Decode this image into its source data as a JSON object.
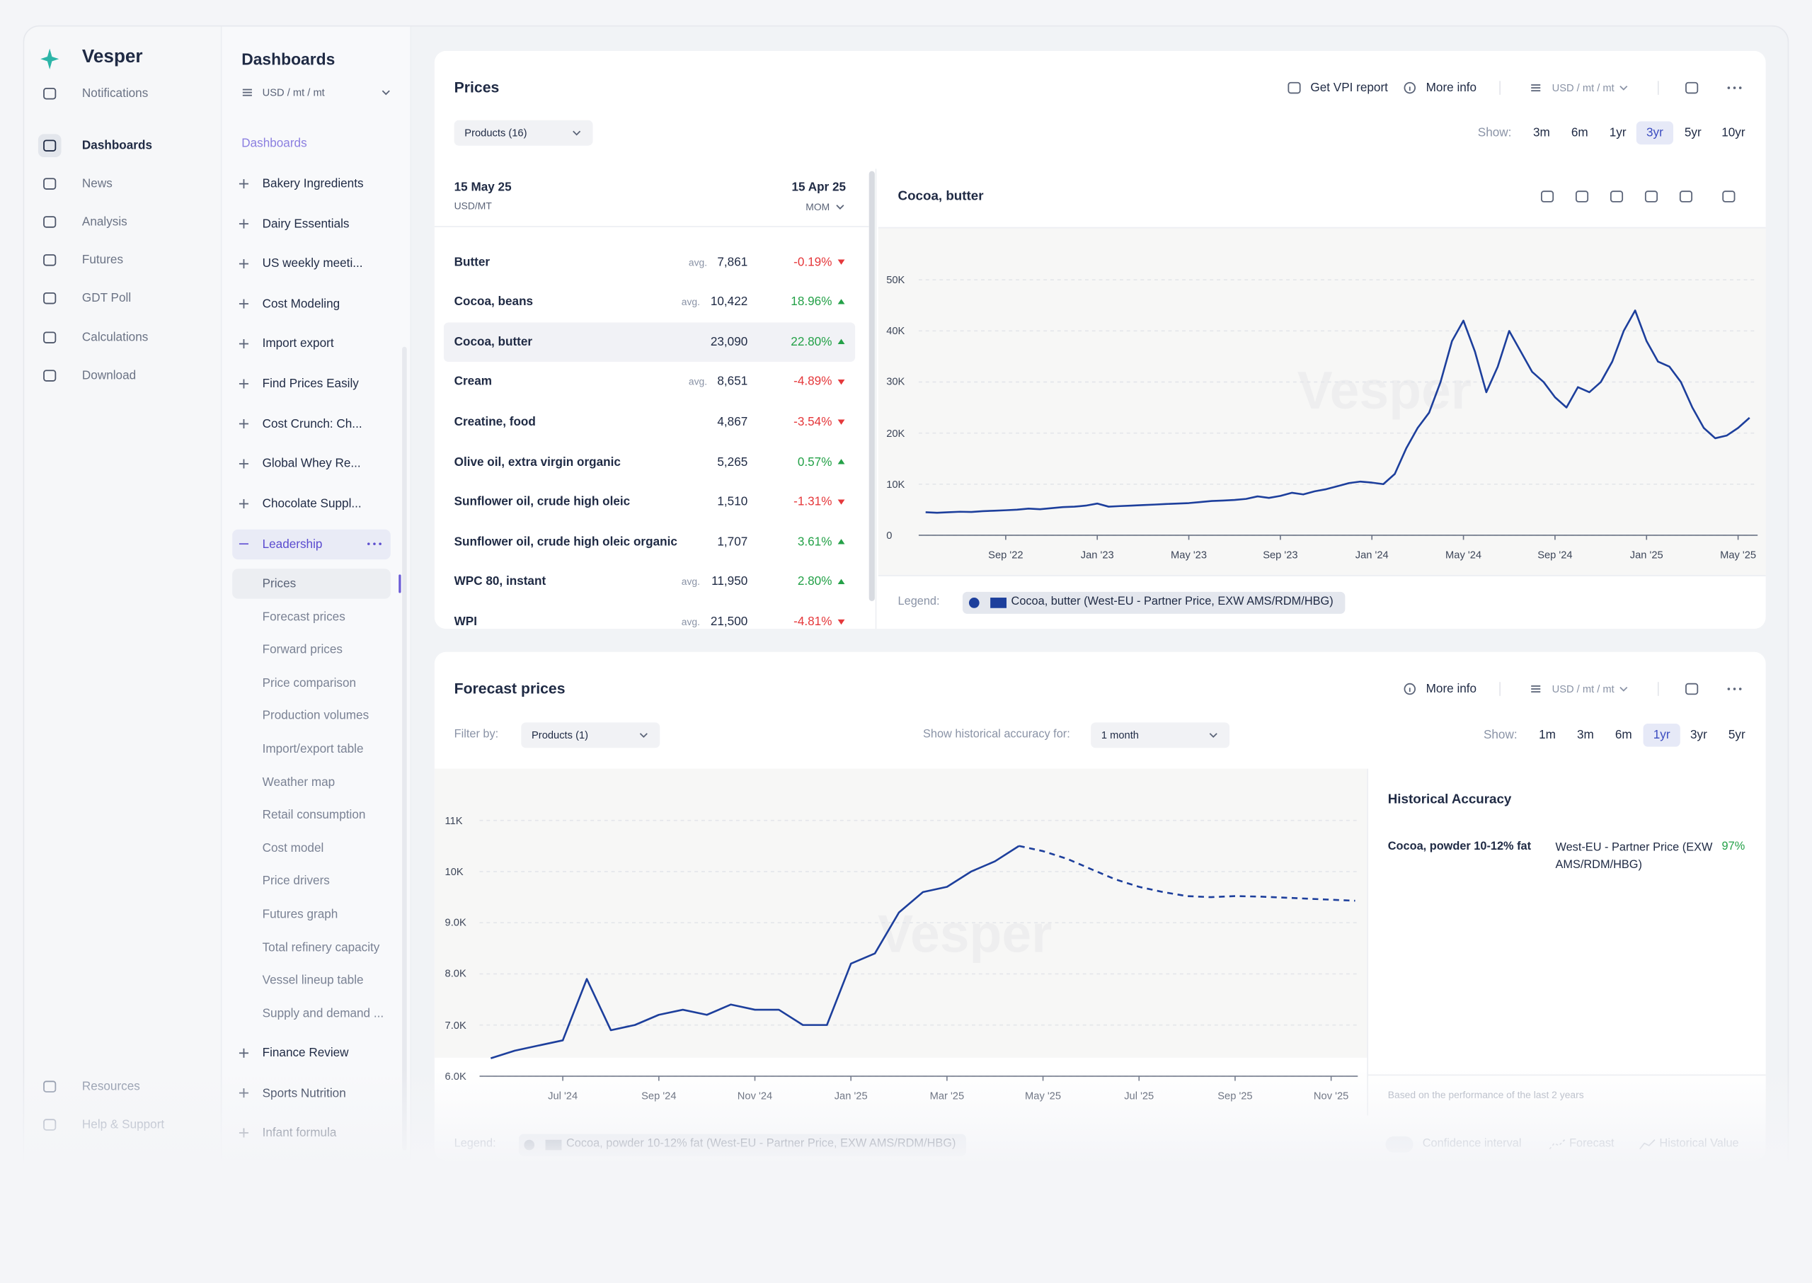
{
  "sidebar": {
    "brand": "Vesper",
    "nav": [
      "Notifications",
      "Dashboards",
      "News",
      "Analysis",
      "Futures",
      "GDT Poll",
      "Calculations",
      "Download"
    ],
    "active": "Dashboards",
    "footer": [
      "Resources",
      "Help & Support"
    ]
  },
  "dashboards": {
    "title": "Dashboards",
    "unit": "USD / mt / mt",
    "section": "Dashboards",
    "groups": [
      "Bakery Ingredients",
      "Dairy Essentials",
      "US weekly meeti...",
      "Cost Modeling",
      "Import export",
      "Find Prices Easily",
      "Cost Crunch: Ch...",
      "Global Whey Re...",
      "Chocolate Suppl..."
    ],
    "open": {
      "name": "Leadership",
      "items": [
        "Prices",
        "Forecast prices",
        "Forward prices",
        "Price comparison",
        "Production volumes",
        "Import/export table",
        "Weather map",
        "Retail consumption",
        "Cost model",
        "Price drivers",
        "Futures graph",
        "Total refinery capacity",
        "Vessel lineup table",
        "Supply and demand ..."
      ],
      "active": "Prices"
    },
    "groups_after": [
      "Finance Review",
      "Sports Nutrition",
      "Infant formula"
    ]
  },
  "prices": {
    "title": "Prices",
    "actions": [
      "Get VPI report",
      "More info"
    ],
    "unit": "USD / mt / mt",
    "filter": "Products (16)",
    "show_label": "Show:",
    "ranges": [
      "3m",
      "6m",
      "1yr",
      "3yr",
      "5yr",
      "10yr"
    ],
    "active_range": "3yr",
    "table": {
      "date": "15 May 25",
      "unit": "USD/MT",
      "compare_date": "15 Apr 25",
      "compare_mode": "MOM",
      "avg_label": "avg.",
      "selected": "Cocoa, butter",
      "rows": [
        {
          "name": "Butter",
          "avg": true,
          "price": "7,861",
          "change": "-0.19%",
          "trend": "down"
        },
        {
          "name": "Cocoa, beans",
          "avg": true,
          "price": "10,422",
          "change": "18.96%",
          "trend": "up"
        },
        {
          "name": "Cocoa, butter",
          "avg": false,
          "price": "23,090",
          "change": "22.80%",
          "trend": "up"
        },
        {
          "name": "Cream",
          "avg": true,
          "price": "8,651",
          "change": "-4.89%",
          "trend": "down"
        },
        {
          "name": "Creatine, food",
          "avg": false,
          "price": "4,867",
          "change": "-3.54%",
          "trend": "down"
        },
        {
          "name": "Olive oil, extra virgin organic",
          "avg": false,
          "price": "5,265",
          "change": "0.57%",
          "trend": "up"
        },
        {
          "name": "Sunflower oil, crude high oleic",
          "avg": false,
          "price": "1,510",
          "change": "-1.31%",
          "trend": "down"
        },
        {
          "name": "Sunflower oil, crude high oleic organic",
          "avg": false,
          "price": "1,707",
          "change": "3.61%",
          "trend": "up"
        },
        {
          "name": "WPC 80, instant",
          "avg": true,
          "price": "11,950",
          "change": "2.80%",
          "trend": "up"
        },
        {
          "name": "WPI",
          "avg": true,
          "price": "21,500",
          "change": "-4.81%",
          "trend": "down"
        }
      ]
    },
    "chart": {
      "type": "line",
      "title": "Cocoa, butter",
      "legend_label": "Legend:",
      "ylim": [
        0,
        55000
      ],
      "yticks": [
        0,
        {
          "value": 10000,
          "label": "10K"
        },
        {
          "value": 20000,
          "label": "20K"
        },
        {
          "value": 30000,
          "label": "30K"
        },
        {
          "value": 40000,
          "label": "40K"
        },
        {
          "value": 50000,
          "label": "50K"
        }
      ],
      "xlim": [
        0,
        72
      ],
      "xticks": [
        {
          "value": 7,
          "label": "Sep '22"
        },
        {
          "value": 15,
          "label": "Jan '23"
        },
        {
          "value": 23,
          "label": "May '23"
        },
        {
          "value": 31,
          "label": "Sep '23"
        },
        {
          "value": 39,
          "label": "Jan '24"
        },
        {
          "value": 47,
          "label": "May '24"
        },
        {
          "value": 55,
          "label": "Sep '24"
        },
        {
          "value": 63,
          "label": "Jan '25"
        },
        {
          "value": 71,
          "label": "May '25"
        }
      ],
      "series": [
        {
          "name": "Cocoa, butter (West-EU - Partner Price, EXW AMS/RDM/HBG)",
          "color": "#1d3f9c",
          "values": [
            4500,
            4400,
            4500,
            4600,
            4550,
            4700,
            4800,
            4900,
            5000,
            5200,
            5100,
            5300,
            5500,
            5600,
            5800,
            6200,
            5600,
            5700,
            5800,
            5900,
            6000,
            6100,
            6200,
            6300,
            6500,
            6700,
            6800,
            6900,
            7100,
            7600,
            7300,
            7700,
            8300,
            8000,
            8600,
            9000,
            9600,
            10200,
            10500,
            10300,
            10000,
            12000,
            17000,
            21000,
            24000,
            30000,
            38000,
            42000,
            36000,
            28000,
            33000,
            40000,
            36000,
            32000,
            30000,
            27000,
            25000,
            29000,
            28000,
            30000,
            34000,
            40000,
            44000,
            38000,
            34000,
            33000,
            30000,
            25000,
            21000,
            19000,
            19500,
            21000,
            23000
          ]
        }
      ]
    }
  },
  "forecast": {
    "title": "Forecast prices",
    "actions": [
      "More info"
    ],
    "unit": "USD / mt / mt",
    "filter_label": "Filter by:",
    "filter": "Products (1)",
    "accuracy_label": "Show historical accuracy for:",
    "accuracy_period": "1 month",
    "show_label": "Show:",
    "ranges": [
      "1m",
      "3m",
      "6m",
      "1yr",
      "3yr",
      "5yr"
    ],
    "active_range": "1yr",
    "chart": {
      "type": "line",
      "legend_label": "Legend:",
      "legend_item": "Cocoa, powder 10-12% fat (West-EU - Partner Price, EXW AMS/RDM/HBG)",
      "toggle": "Confidence interval",
      "ylim": [
        6000,
        11400
      ],
      "yticks": [
        {
          "value": 6000,
          "label": "6.0K"
        },
        {
          "value": 7000,
          "label": "7.0K"
        },
        {
          "value": 8000,
          "label": "8.0K"
        },
        {
          "value": 9000,
          "label": "9.0K"
        },
        {
          "value": 10000,
          "label": "10K"
        },
        {
          "value": 11000,
          "label": "11K"
        }
      ],
      "xlim": [
        0,
        36
      ],
      "xticks": [
        {
          "value": 3,
          "label": "Jul '24"
        },
        {
          "value": 7,
          "label": "Sep '24"
        },
        {
          "value": 11,
          "label": "Nov '24"
        },
        {
          "value": 15,
          "label": "Jan '25"
        },
        {
          "value": 19,
          "label": "Mar '25"
        },
        {
          "value": 23,
          "label": "May '25"
        },
        {
          "value": 27,
          "label": "Jul '25"
        },
        {
          "value": 31,
          "label": "Sep '25"
        },
        {
          "value": 35,
          "label": "Nov '25"
        }
      ],
      "series": [
        {
          "name": "Forecast",
          "color": "#1d3f9c",
          "dash": true,
          "values": [
            null,
            null,
            null,
            null,
            null,
            null,
            null,
            null,
            null,
            null,
            null,
            null,
            null,
            null,
            null,
            null,
            null,
            null,
            null,
            null,
            null,
            null,
            10500,
            10400,
            10250,
            10050,
            9850,
            9700,
            9600,
            9520,
            9500,
            9520,
            9510,
            9490,
            9470,
            9450,
            9430
          ]
        },
        {
          "name": "Historical Value",
          "color": "#1d3f9c",
          "dash": false,
          "values": [
            6350,
            6500,
            6600,
            6700,
            7900,
            6900,
            7000,
            7200,
            7300,
            7200,
            7400,
            7300,
            7300,
            7000,
            7000,
            8200,
            8400,
            9200,
            9600,
            9700,
            10000,
            10200,
            10500,
            null,
            null,
            null,
            null,
            null,
            null,
            null,
            null,
            null,
            null,
            null,
            null,
            null,
            null
          ]
        }
      ]
    },
    "accuracy": {
      "title": "Historical Accuracy",
      "rows": [
        {
          "product": "Cocoa, powder 10-12% fat",
          "source": "West-EU - Partner Price (EXW AMS/RDM/HBG)",
          "score": "97%"
        }
      ],
      "note": "Based on the performance of the last 2 years"
    }
  }
}
